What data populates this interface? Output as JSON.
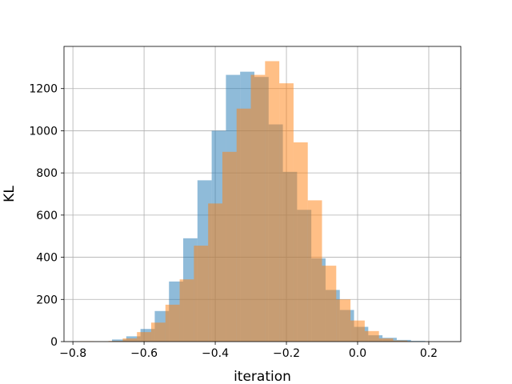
{
  "chart_data": {
    "type": "bar",
    "subtype": "histogram",
    "title": "",
    "xlabel": "iteration",
    "ylabel": "KL",
    "xlim": [
      -0.825,
      0.29
    ],
    "ylim": [
      0,
      1400
    ],
    "xticks": [
      -0.8,
      -0.6,
      -0.4,
      -0.2,
      0.0,
      0.2
    ],
    "xtick_labels": [
      "−0.8",
      "−0.6",
      "−0.4",
      "−0.2",
      "0.0",
      "0.2"
    ],
    "yticks": [
      0,
      200,
      400,
      600,
      800,
      1000,
      1200
    ],
    "ytick_labels": [
      "0",
      "200",
      "400",
      "600",
      "800",
      "1000",
      "1200"
    ],
    "grid": true,
    "legend": "none",
    "series": [
      {
        "color": "#1f77b4",
        "alpha": 0.5,
        "bins": [
          [
            -0.69,
            -0.65,
            10
          ],
          [
            -0.65,
            -0.61,
            25
          ],
          [
            -0.61,
            -0.57,
            60
          ],
          [
            -0.57,
            -0.53,
            145
          ],
          [
            -0.53,
            -0.49,
            285
          ],
          [
            -0.49,
            -0.45,
            490
          ],
          [
            -0.45,
            -0.41,
            765
          ],
          [
            -0.41,
            -0.37,
            1000
          ],
          [
            -0.37,
            -0.33,
            1265
          ],
          [
            -0.33,
            -0.29,
            1280
          ],
          [
            -0.29,
            -0.25,
            1255
          ],
          [
            -0.25,
            -0.21,
            1030
          ],
          [
            -0.21,
            -0.17,
            805
          ],
          [
            -0.17,
            -0.13,
            625
          ],
          [
            -0.13,
            -0.09,
            395
          ],
          [
            -0.09,
            -0.05,
            245
          ],
          [
            -0.05,
            -0.01,
            150
          ],
          [
            -0.01,
            0.03,
            70
          ],
          [
            0.03,
            0.07,
            30
          ],
          [
            0.07,
            0.11,
            18
          ],
          [
            0.11,
            0.15,
            8
          ],
          [
            0.15,
            0.19,
            3
          ]
        ]
      },
      {
        "color": "#ff7f0e",
        "alpha": 0.5,
        "bins": [
          [
            -0.78,
            -0.74,
            2
          ],
          [
            -0.74,
            -0.7,
            1
          ],
          [
            -0.7,
            -0.66,
            3
          ],
          [
            -0.66,
            -0.62,
            15
          ],
          [
            -0.62,
            -0.58,
            45
          ],
          [
            -0.58,
            -0.54,
            90
          ],
          [
            -0.54,
            -0.5,
            175
          ],
          [
            -0.5,
            -0.46,
            295
          ],
          [
            -0.46,
            -0.42,
            455
          ],
          [
            -0.42,
            -0.38,
            655
          ],
          [
            -0.38,
            -0.34,
            900
          ],
          [
            -0.34,
            -0.3,
            1105
          ],
          [
            -0.3,
            -0.26,
            1265
          ],
          [
            -0.26,
            -0.22,
            1330
          ],
          [
            -0.22,
            -0.18,
            1225
          ],
          [
            -0.18,
            -0.14,
            945
          ],
          [
            -0.14,
            -0.1,
            670
          ],
          [
            -0.1,
            -0.06,
            360
          ],
          [
            -0.06,
            -0.02,
            200
          ],
          [
            -0.02,
            0.02,
            100
          ],
          [
            0.02,
            0.06,
            50
          ],
          [
            0.06,
            0.1,
            15
          ],
          [
            0.1,
            0.14,
            5
          ]
        ]
      }
    ]
  }
}
